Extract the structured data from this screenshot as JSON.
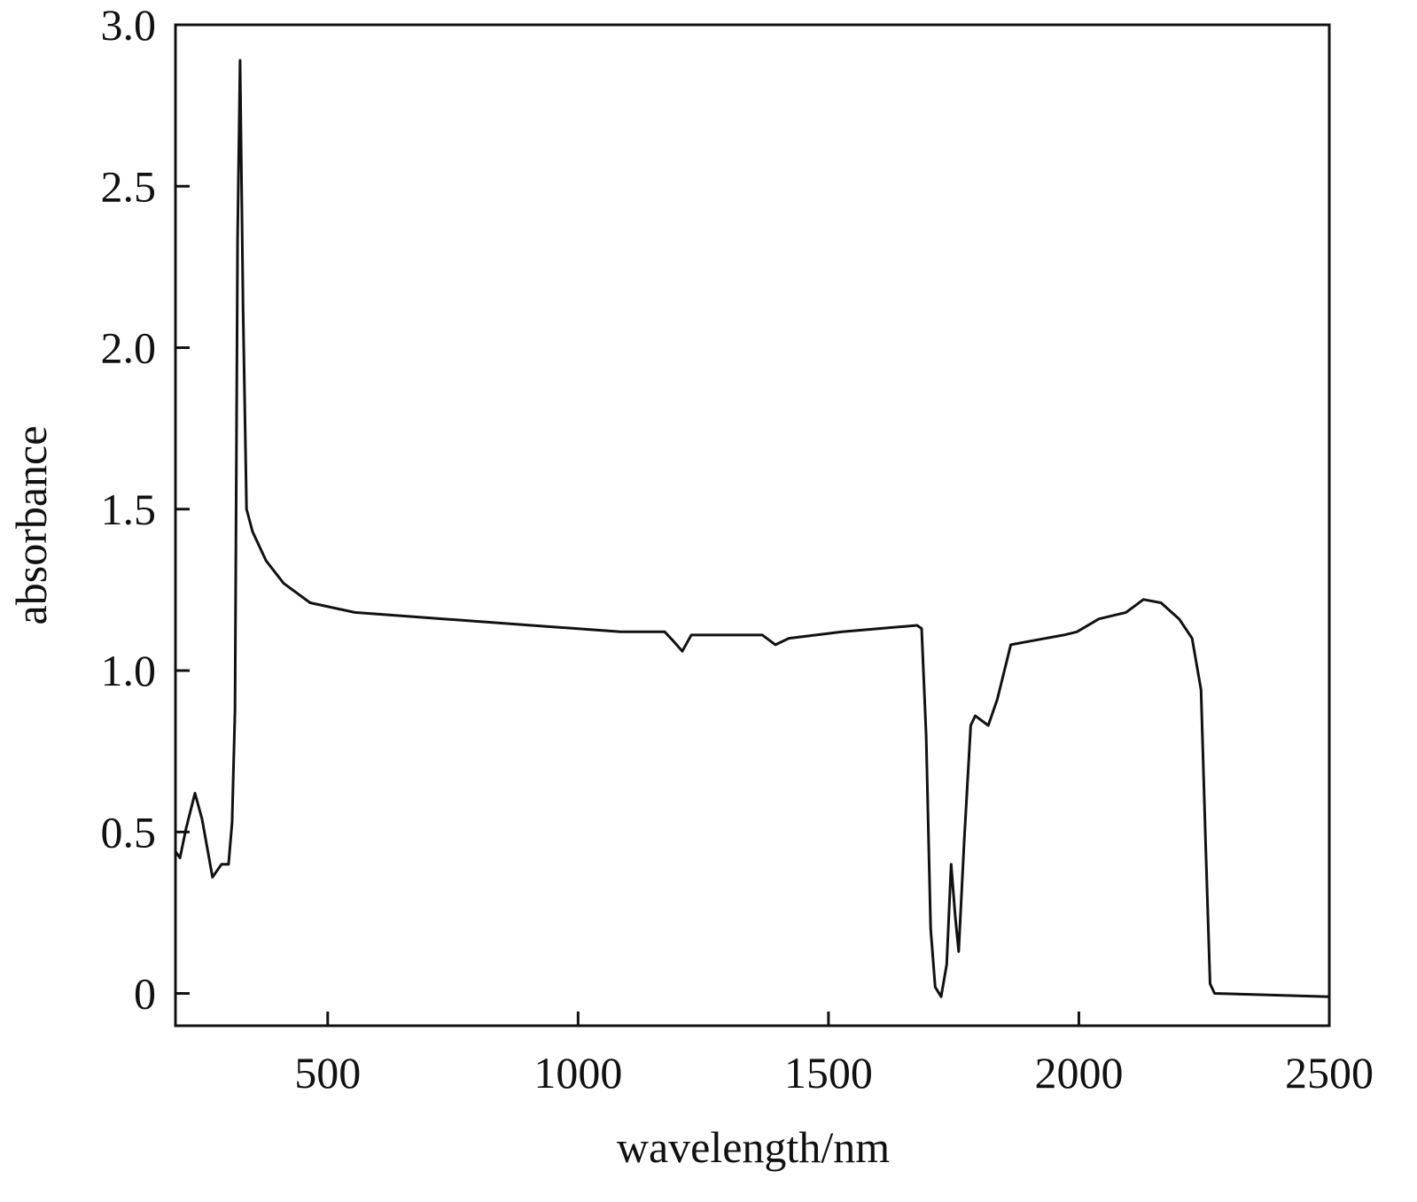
{
  "chart_data": {
    "type": "line",
    "xlabel": "wavelength/nm",
    "ylabel": "absorbance",
    "xlim": [
      196,
      2500
    ],
    "ylim": [
      -0.1,
      3.0
    ],
    "xticks": [
      500,
      1000,
      1500,
      2000,
      2500
    ],
    "yticks": [
      0,
      0.5,
      {
        "value": 1,
        "label": "1.0"
      },
      1.5,
      {
        "value": 2,
        "label": "2.0"
      },
      2.5,
      {
        "value": 3,
        "label": "3.0"
      }
    ],
    "grid": false,
    "series": [
      {
        "color": "#111111",
        "x": [
          196,
          205,
          217,
          235,
          249,
          270,
          288,
          302,
          309,
          315,
          320,
          325,
          331,
          338,
          350,
          377,
          412,
          465,
          554,
          731,
          907,
          1085,
          1173,
          1191,
          1208,
          1226,
          1368,
          1394,
          1421,
          1527,
          1677,
          1686,
          1695,
          1704,
          1713,
          1725,
          1736,
          1745,
          1753,
          1760,
          1771,
          1784,
          1793,
          1819,
          1837,
          1864,
          1899,
          1970,
          1996,
          2040,
          2094,
          2129,
          2164,
          2200,
          2226,
          2244,
          2253,
          2262,
          2271,
          2500
        ],
        "values": [
          0.44,
          0.42,
          0.51,
          0.62,
          0.54,
          0.36,
          0.4,
          0.4,
          0.53,
          0.88,
          2.34,
          2.89,
          2.12,
          1.5,
          1.43,
          1.34,
          1.27,
          1.21,
          1.18,
          1.16,
          1.14,
          1.12,
          1.12,
          1.09,
          1.06,
          1.11,
          1.11,
          1.08,
          1.1,
          1.12,
          1.14,
          1.13,
          0.8,
          0.2,
          0.02,
          -0.01,
          0.09,
          0.4,
          0.24,
          0.13,
          0.47,
          0.83,
          0.86,
          0.83,
          0.91,
          1.08,
          1.09,
          1.11,
          1.12,
          1.16,
          1.18,
          1.22,
          1.21,
          1.16,
          1.1,
          0.94,
          0.47,
          0.03,
          0,
          -0.01
        ]
      }
    ]
  }
}
